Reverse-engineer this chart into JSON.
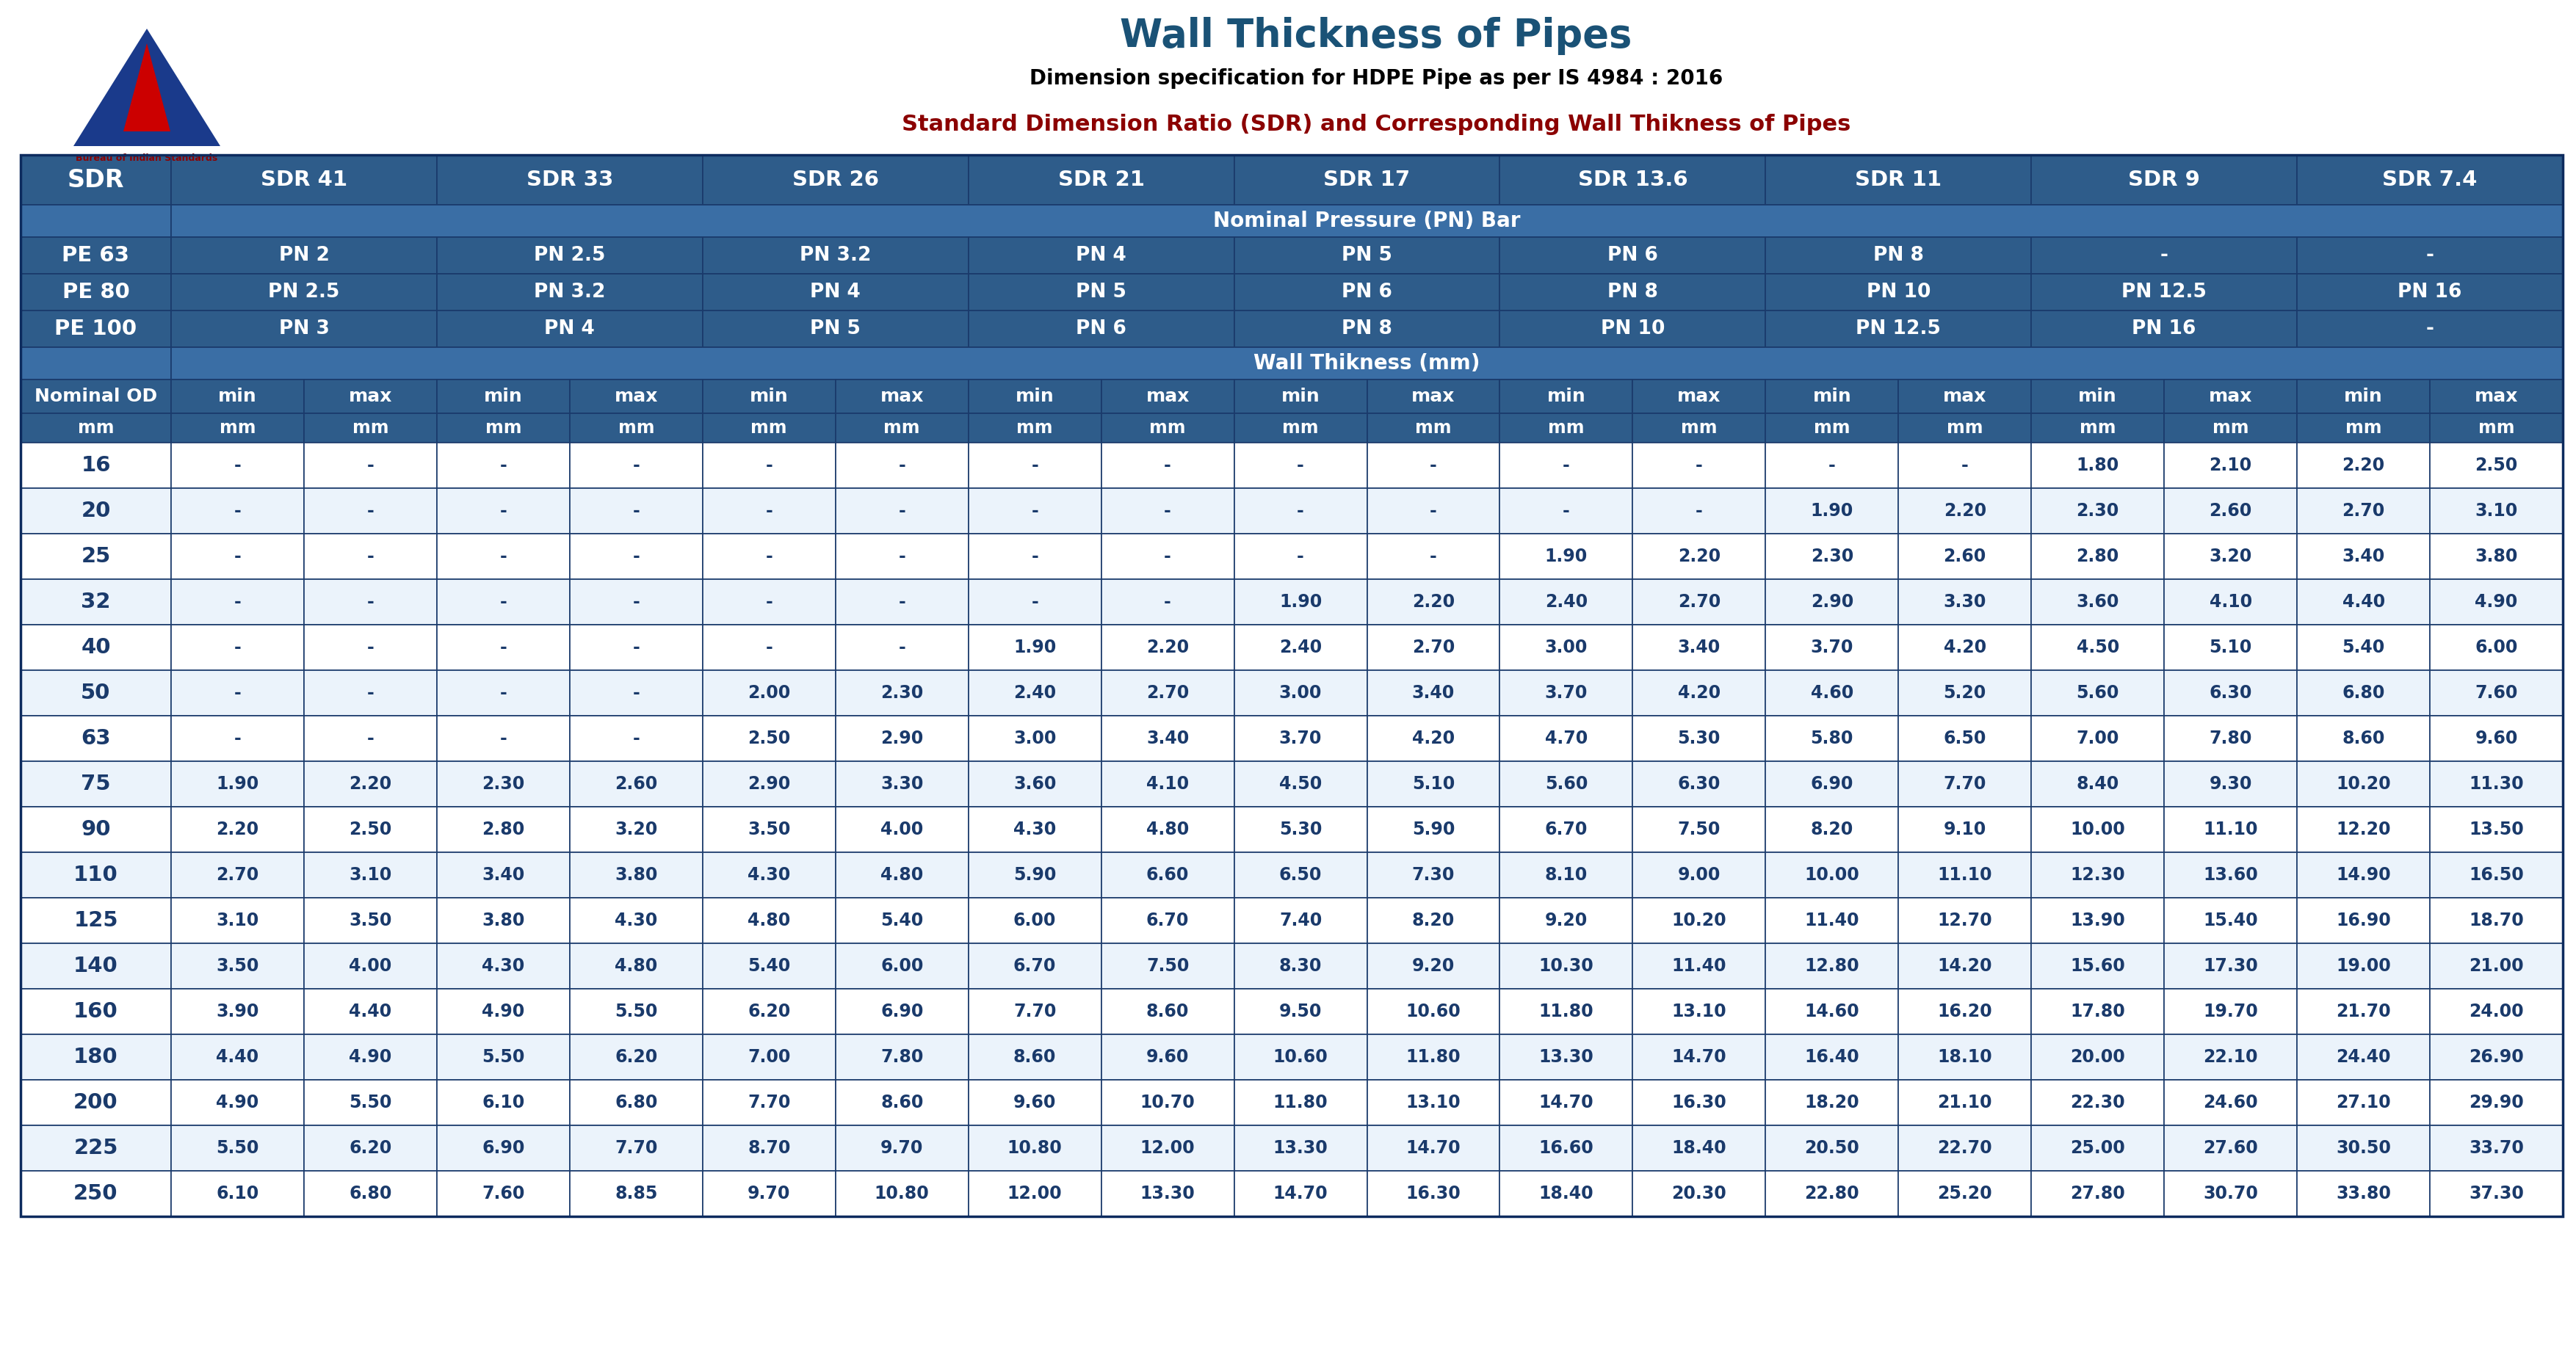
{
  "title": "Wall Thickness of Pipes",
  "subtitle": "Dimension specification for HDPE Pipe as per IS 4984 : 2016",
  "subtitle2": "Standard Dimension Ratio (SDR) and Corresponding Wall Thikness of Pipes",
  "header_bg": "#2E5C8A",
  "subheader_bg": "#3A6EA5",
  "data_text": "#1A3A6B",
  "title_color": "#1A5276",
  "subtitle2_color": "#8B0000",
  "sdr_cols": [
    "SDR",
    "SDR 41",
    "SDR 33",
    "SDR 26",
    "SDR 21",
    "SDR 17",
    "SDR 13.6",
    "SDR 11",
    "SDR 9",
    "SDR 7.4"
  ],
  "nominal_pressure_label": "Nominal Pressure (PN) Bar",
  "wall_thickness_label": "Wall Thikness (mm)",
  "pe_rows": [
    [
      "PE 63",
      "PN 2",
      "PN 2.5",
      "PN 3.2",
      "PN 4",
      "PN 5",
      "PN 6",
      "PN 8",
      "-",
      "-"
    ],
    [
      "PE 80",
      "PN 2.5",
      "PN 3.2",
      "PN 4",
      "PN 5",
      "PN 6",
      "PN 8",
      "PN 10",
      "PN 12.5",
      "PN 16"
    ],
    [
      "PE 100",
      "PN 3",
      "PN 4",
      "PN 5",
      "PN 6",
      "PN 8",
      "PN 10",
      "PN 12.5",
      "PN 16",
      "-"
    ]
  ],
  "data_rows": [
    [
      "16",
      "-",
      "-",
      "-",
      "-",
      "-",
      "-",
      "-",
      "-",
      "-",
      "-",
      "-",
      "-",
      "-",
      "-",
      "1.80",
      "2.10",
      "2.20",
      "2.50"
    ],
    [
      "20",
      "-",
      "-",
      "-",
      "-",
      "-",
      "-",
      "-",
      "-",
      "-",
      "-",
      "-",
      "-",
      "1.90",
      "2.20",
      "2.30",
      "2.60",
      "2.70",
      "3.10"
    ],
    [
      "25",
      "-",
      "-",
      "-",
      "-",
      "-",
      "-",
      "-",
      "-",
      "-",
      "-",
      "1.90",
      "2.20",
      "2.30",
      "2.60",
      "2.80",
      "3.20",
      "3.40",
      "3.80"
    ],
    [
      "32",
      "-",
      "-",
      "-",
      "-",
      "-",
      "-",
      "-",
      "-",
      "1.90",
      "2.20",
      "2.40",
      "2.70",
      "2.90",
      "3.30",
      "3.60",
      "4.10",
      "4.40",
      "4.90"
    ],
    [
      "40",
      "-",
      "-",
      "-",
      "-",
      "-",
      "-",
      "1.90",
      "2.20",
      "2.40",
      "2.70",
      "3.00",
      "3.40",
      "3.70",
      "4.20",
      "4.50",
      "5.10",
      "5.40",
      "6.00"
    ],
    [
      "50",
      "-",
      "-",
      "-",
      "-",
      "2.00",
      "2.30",
      "2.40",
      "2.70",
      "3.00",
      "3.40",
      "3.70",
      "4.20",
      "4.60",
      "5.20",
      "5.60",
      "6.30",
      "6.80",
      "7.60"
    ],
    [
      "63",
      "-",
      "-",
      "-",
      "-",
      "2.50",
      "2.90",
      "3.00",
      "3.40",
      "3.70",
      "4.20",
      "4.70",
      "5.30",
      "5.80",
      "6.50",
      "7.00",
      "7.80",
      "8.60",
      "9.60"
    ],
    [
      "75",
      "1.90",
      "2.20",
      "2.30",
      "2.60",
      "2.90",
      "3.30",
      "3.60",
      "4.10",
      "4.50",
      "5.10",
      "5.60",
      "6.30",
      "6.90",
      "7.70",
      "8.40",
      "9.30",
      "10.20",
      "11.30"
    ],
    [
      "90",
      "2.20",
      "2.50",
      "2.80",
      "3.20",
      "3.50",
      "4.00",
      "4.30",
      "4.80",
      "5.30",
      "5.90",
      "6.70",
      "7.50",
      "8.20",
      "9.10",
      "10.00",
      "11.10",
      "12.20",
      "13.50"
    ],
    [
      "110",
      "2.70",
      "3.10",
      "3.40",
      "3.80",
      "4.30",
      "4.80",
      "5.90",
      "6.60",
      "6.50",
      "7.30",
      "8.10",
      "9.00",
      "10.00",
      "11.10",
      "12.30",
      "13.60",
      "14.90",
      "16.50"
    ],
    [
      "125",
      "3.10",
      "3.50",
      "3.80",
      "4.30",
      "4.80",
      "5.40",
      "6.00",
      "6.70",
      "7.40",
      "8.20",
      "9.20",
      "10.20",
      "11.40",
      "12.70",
      "13.90",
      "15.40",
      "16.90",
      "18.70"
    ],
    [
      "140",
      "3.50",
      "4.00",
      "4.30",
      "4.80",
      "5.40",
      "6.00",
      "6.70",
      "7.50",
      "8.30",
      "9.20",
      "10.30",
      "11.40",
      "12.80",
      "14.20",
      "15.60",
      "17.30",
      "19.00",
      "21.00"
    ],
    [
      "160",
      "3.90",
      "4.40",
      "4.90",
      "5.50",
      "6.20",
      "6.90",
      "7.70",
      "8.60",
      "9.50",
      "10.60",
      "11.80",
      "13.10",
      "14.60",
      "16.20",
      "17.80",
      "19.70",
      "21.70",
      "24.00"
    ],
    [
      "180",
      "4.40",
      "4.90",
      "5.50",
      "6.20",
      "7.00",
      "7.80",
      "8.60",
      "9.60",
      "10.60",
      "11.80",
      "13.30",
      "14.70",
      "16.40",
      "18.10",
      "20.00",
      "22.10",
      "24.40",
      "26.90"
    ],
    [
      "200",
      "4.90",
      "5.50",
      "6.10",
      "6.80",
      "7.70",
      "8.60",
      "9.60",
      "10.70",
      "11.80",
      "13.10",
      "14.70",
      "16.30",
      "18.20",
      "21.10",
      "22.30",
      "24.60",
      "27.10",
      "29.90"
    ],
    [
      "225",
      "5.50",
      "6.20",
      "6.90",
      "7.70",
      "8.70",
      "9.70",
      "10.80",
      "12.00",
      "13.30",
      "14.70",
      "16.60",
      "18.40",
      "20.50",
      "22.70",
      "25.00",
      "27.60",
      "30.50",
      "33.70"
    ],
    [
      "250",
      "6.10",
      "6.80",
      "7.60",
      "8.85",
      "9.70",
      "10.80",
      "12.00",
      "13.30",
      "14.70",
      "16.30",
      "18.40",
      "20.30",
      "22.80",
      "25.20",
      "27.80",
      "30.70",
      "33.80",
      "37.30"
    ]
  ]
}
